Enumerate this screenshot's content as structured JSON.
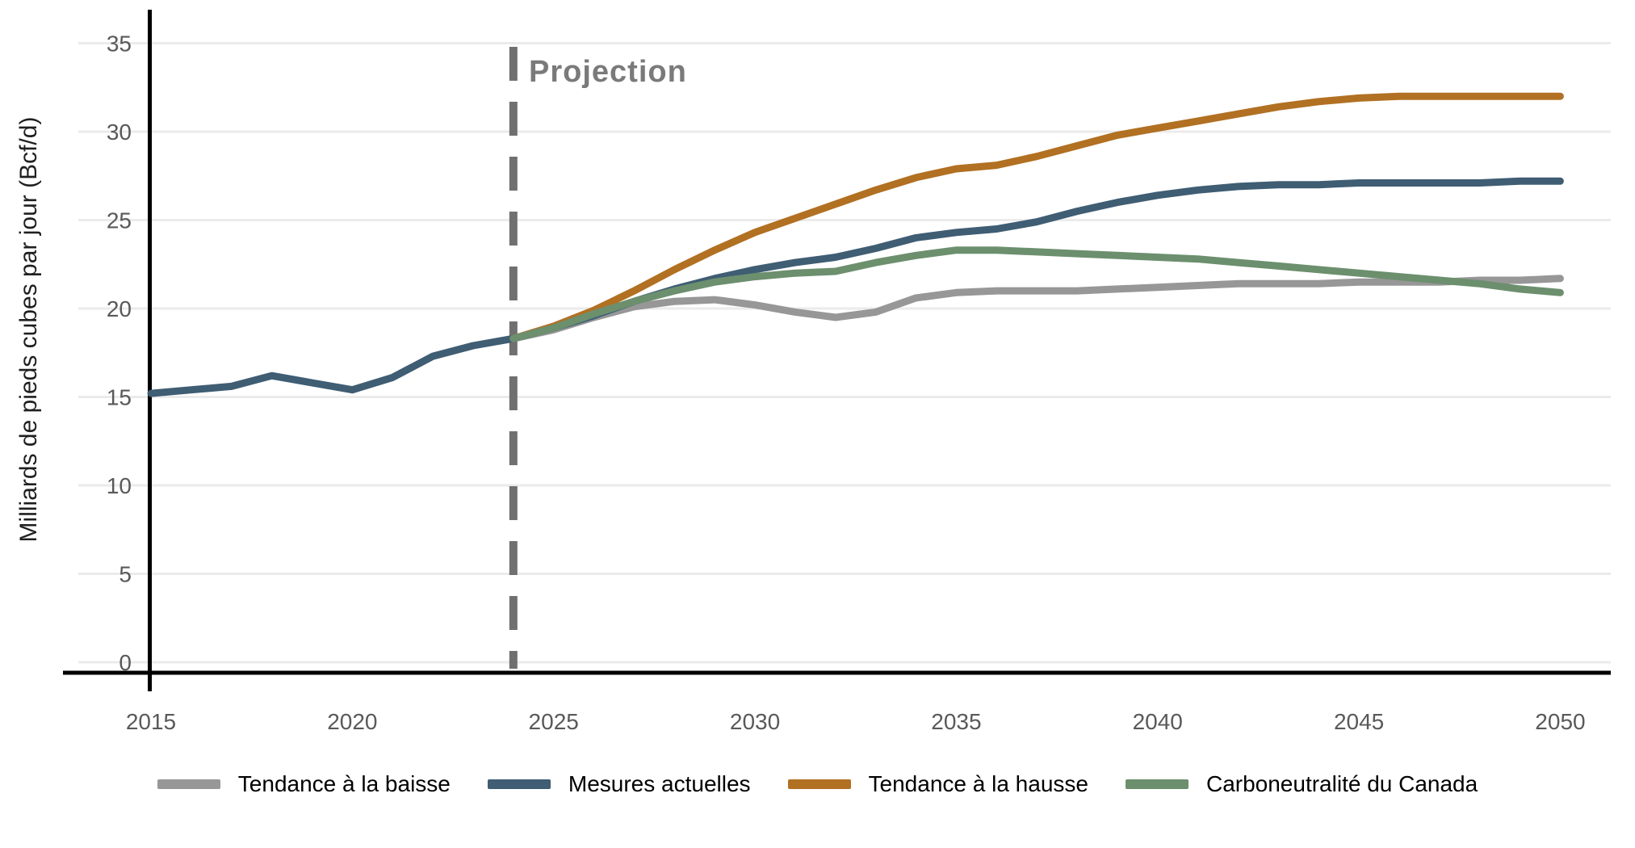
{
  "chart": {
    "ylabel": "Milliards de pieds cubes par jour (Bcf/d)",
    "projection_label": "Projection",
    "colors": {
      "grid": "#ebebeb",
      "axis_line": "#000000",
      "tick_text": "#595959",
      "projection_line": "#707070",
      "projection_text": "#7a7a7a"
    }
  },
  "legend": {
    "items": [
      {
        "label": "Tendance à la baisse",
        "color": "#979797"
      },
      {
        "label": "Mesures actuelles",
        "color": "#3f5d73"
      },
      {
        "label": "Tendance à la hausse",
        "color": "#b17022"
      },
      {
        "label": "Carboneutralité du Canada",
        "color": "#6c8f6e"
      }
    ]
  },
  "chart_data": {
    "type": "line",
    "title": "",
    "xlabel": "",
    "ylabel": "Milliards de pieds cubes par jour (Bcf/d)",
    "xlim": [
      2013.2,
      2052
    ],
    "ylim": [
      0,
      37
    ],
    "x_ticks": [
      2015,
      2020,
      2025,
      2030,
      2035,
      2040,
      2045,
      2050
    ],
    "y_ticks": [
      0,
      5,
      10,
      15,
      20,
      25,
      30,
      35
    ],
    "grid": "horizontal-only",
    "legend_position": "bottom-center",
    "projection_divider_x": 2024,
    "x": [
      2015,
      2016,
      2017,
      2018,
      2019,
      2020,
      2021,
      2022,
      2023,
      2024,
      2025,
      2026,
      2027,
      2028,
      2029,
      2030,
      2031,
      2032,
      2033,
      2034,
      2035,
      2036,
      2037,
      2038,
      2039,
      2040,
      2041,
      2042,
      2043,
      2044,
      2045,
      2046,
      2047,
      2048,
      2049,
      2050
    ],
    "series": [
      {
        "name": "Tendance à la baisse",
        "color": "#979797",
        "values": [
          null,
          null,
          null,
          null,
          null,
          null,
          null,
          null,
          null,
          18.3,
          18.8,
          19.5,
          20.1,
          20.4,
          20.5,
          20.2,
          19.8,
          19.5,
          19.8,
          20.6,
          20.9,
          21.0,
          21.0,
          21.0,
          21.1,
          21.2,
          21.3,
          21.4,
          21.4,
          21.4,
          21.5,
          21.5,
          21.5,
          21.6,
          21.6,
          21.7
        ]
      },
      {
        "name": "Mesures actuelles",
        "color": "#3f5d73",
        "values": [
          15.2,
          15.4,
          15.6,
          16.2,
          15.8,
          15.4,
          16.1,
          17.3,
          17.9,
          18.3,
          18.9,
          19.6,
          20.4,
          21.1,
          21.7,
          22.2,
          22.6,
          22.9,
          23.4,
          24.0,
          24.3,
          24.5,
          24.9,
          25.5,
          26.0,
          26.4,
          26.7,
          26.9,
          27.0,
          27.0,
          27.1,
          27.1,
          27.1,
          27.1,
          27.2,
          27.2
        ]
      },
      {
        "name": "Tendance à la hausse",
        "color": "#b17022",
        "values": [
          null,
          null,
          null,
          null,
          null,
          null,
          null,
          null,
          null,
          18.3,
          19.0,
          19.9,
          21.0,
          22.2,
          23.3,
          24.3,
          25.1,
          25.9,
          26.7,
          27.4,
          27.9,
          28.1,
          28.6,
          29.2,
          29.8,
          30.2,
          30.6,
          31.0,
          31.4,
          31.7,
          31.9,
          32.0,
          32.0,
          32.0,
          32.0,
          32.0
        ]
      },
      {
        "name": "Carboneutralité du Canada",
        "color": "#6c8f6e",
        "values": [
          null,
          null,
          null,
          null,
          null,
          null,
          null,
          null,
          null,
          18.3,
          18.9,
          19.7,
          20.4,
          21.0,
          21.5,
          21.8,
          22.0,
          22.1,
          22.6,
          23.0,
          23.3,
          23.3,
          23.2,
          23.1,
          23.0,
          22.9,
          22.8,
          22.6,
          22.4,
          22.2,
          22.0,
          21.8,
          21.6,
          21.4,
          21.1,
          20.9
        ]
      }
    ]
  }
}
